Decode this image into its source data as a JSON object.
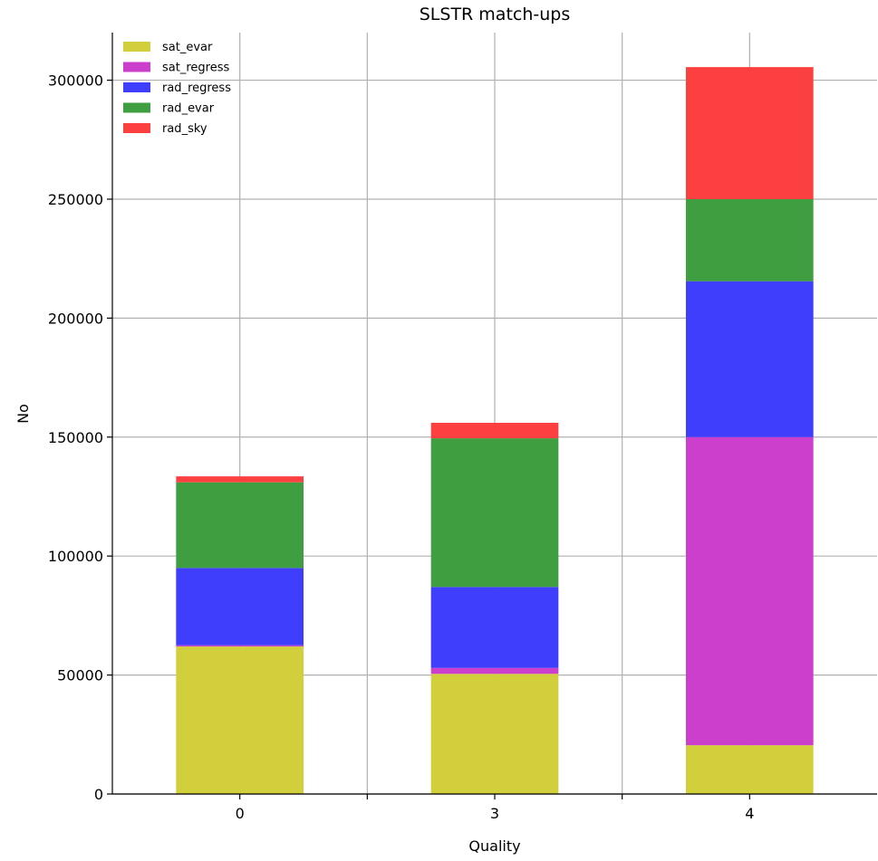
{
  "chart_data": {
    "type": "bar",
    "stacked": true,
    "title": "SLSTR match-ups",
    "xlabel": "Quality",
    "ylabel": "No",
    "categories": [
      "0",
      "3",
      "4"
    ],
    "ylim": [
      0,
      320000
    ],
    "yticks": [
      0,
      50000,
      100000,
      150000,
      200000,
      250000,
      300000
    ],
    "grid": true,
    "legend_position": "top-left",
    "series": [
      {
        "name": "sat_evar",
        "color": "#d2cf3d",
        "values": [
          62000,
          50500,
          20500
        ]
      },
      {
        "name": "sat_regress",
        "color": "#cc3fcc",
        "values": [
          500,
          2500,
          129500
        ]
      },
      {
        "name": "rad_regress",
        "color": "#3e3efc",
        "values": [
          32500,
          34000,
          65500
        ]
      },
      {
        "name": "rad_evar",
        "color": "#3f9e3f",
        "values": [
          36000,
          62500,
          34500
        ]
      },
      {
        "name": "rad_sky",
        "color": "#fc3f3f",
        "values": [
          2500,
          6500,
          55500
        ]
      }
    ]
  }
}
